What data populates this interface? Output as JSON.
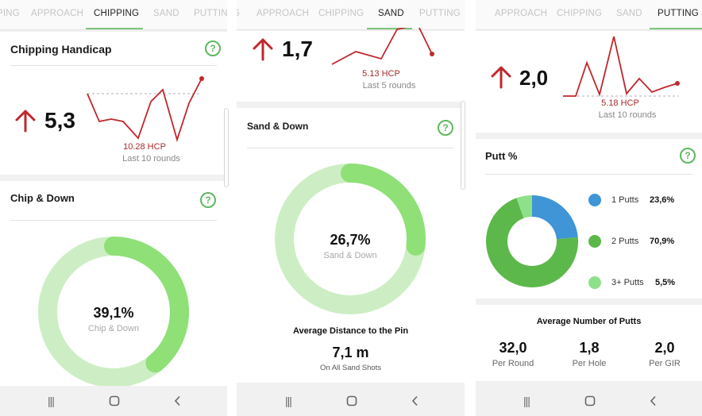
{
  "colors": {
    "accent_green": "#7cc57c",
    "trend_red": "#c0272d",
    "donut_light": "#cdeec4",
    "donut_fill": "#8fe077",
    "putt_blue": "#3f95d6",
    "putt_dark_green": "#5cb84a",
    "putt_light_green": "#8fe08a"
  },
  "screen_chipping": {
    "tabs": [
      "PING",
      "APPROACH",
      "CHIPPING",
      "SAND",
      "PUTTING"
    ],
    "active_tab": "CHIPPING",
    "handicap": {
      "title": "Chipping Handicap",
      "help": "?",
      "value": "5,3",
      "hcp": "10.28 HCP",
      "rounds": "Last 10 rounds"
    },
    "chip_down": {
      "title": "Chip & Down",
      "help": "?",
      "value": "39,1%",
      "label": "Chip & Down",
      "percent": 39.1
    }
  },
  "screen_sand": {
    "tabs": [
      "G",
      "APPROACH",
      "CHIPPING",
      "SAND",
      "PUTTING"
    ],
    "active_tab": "SAND",
    "handicap": {
      "value": "1,7",
      "hcp": "5.13 HCP",
      "rounds": "Last 5 rounds"
    },
    "sand_down": {
      "title": "Sand & Down",
      "help": "?",
      "value": "26,7%",
      "label": "Sand & Down",
      "percent": 26.7
    },
    "avg_distance": {
      "title": "Average Distance to the Pin",
      "value": "7,1 m",
      "label": "On All Sand Shots"
    }
  },
  "screen_putting": {
    "tabs": [
      "APPROACH",
      "CHIPPING",
      "SAND",
      "PUTTING"
    ],
    "active_tab": "PUTTING",
    "handicap": {
      "value": "2,0",
      "hcp": "5.18 HCP",
      "rounds": "Last 10 rounds"
    },
    "putt_pct": {
      "title": "Putt %",
      "help": "?",
      "legend": [
        {
          "label": "1 Putts",
          "value": "23,6%",
          "percent": 23.6,
          "color": "#3f95d6"
        },
        {
          "label": "2 Putts",
          "value": "70,9%",
          "percent": 70.9,
          "color": "#5cb84a"
        },
        {
          "label": "3+ Putts",
          "value": "5,5%",
          "percent": 5.5,
          "color": "#8fe08a"
        }
      ]
    },
    "avg_putts": {
      "title": "Average Number of Putts",
      "stats": [
        {
          "value": "32,0",
          "label": "Per Round"
        },
        {
          "value": "1,8",
          "label": "Per Hole"
        },
        {
          "value": "2,0",
          "label": "Per GIR"
        }
      ]
    }
  },
  "nav": {
    "recent": "|||",
    "home": "home-icon",
    "back": "back-icon"
  }
}
